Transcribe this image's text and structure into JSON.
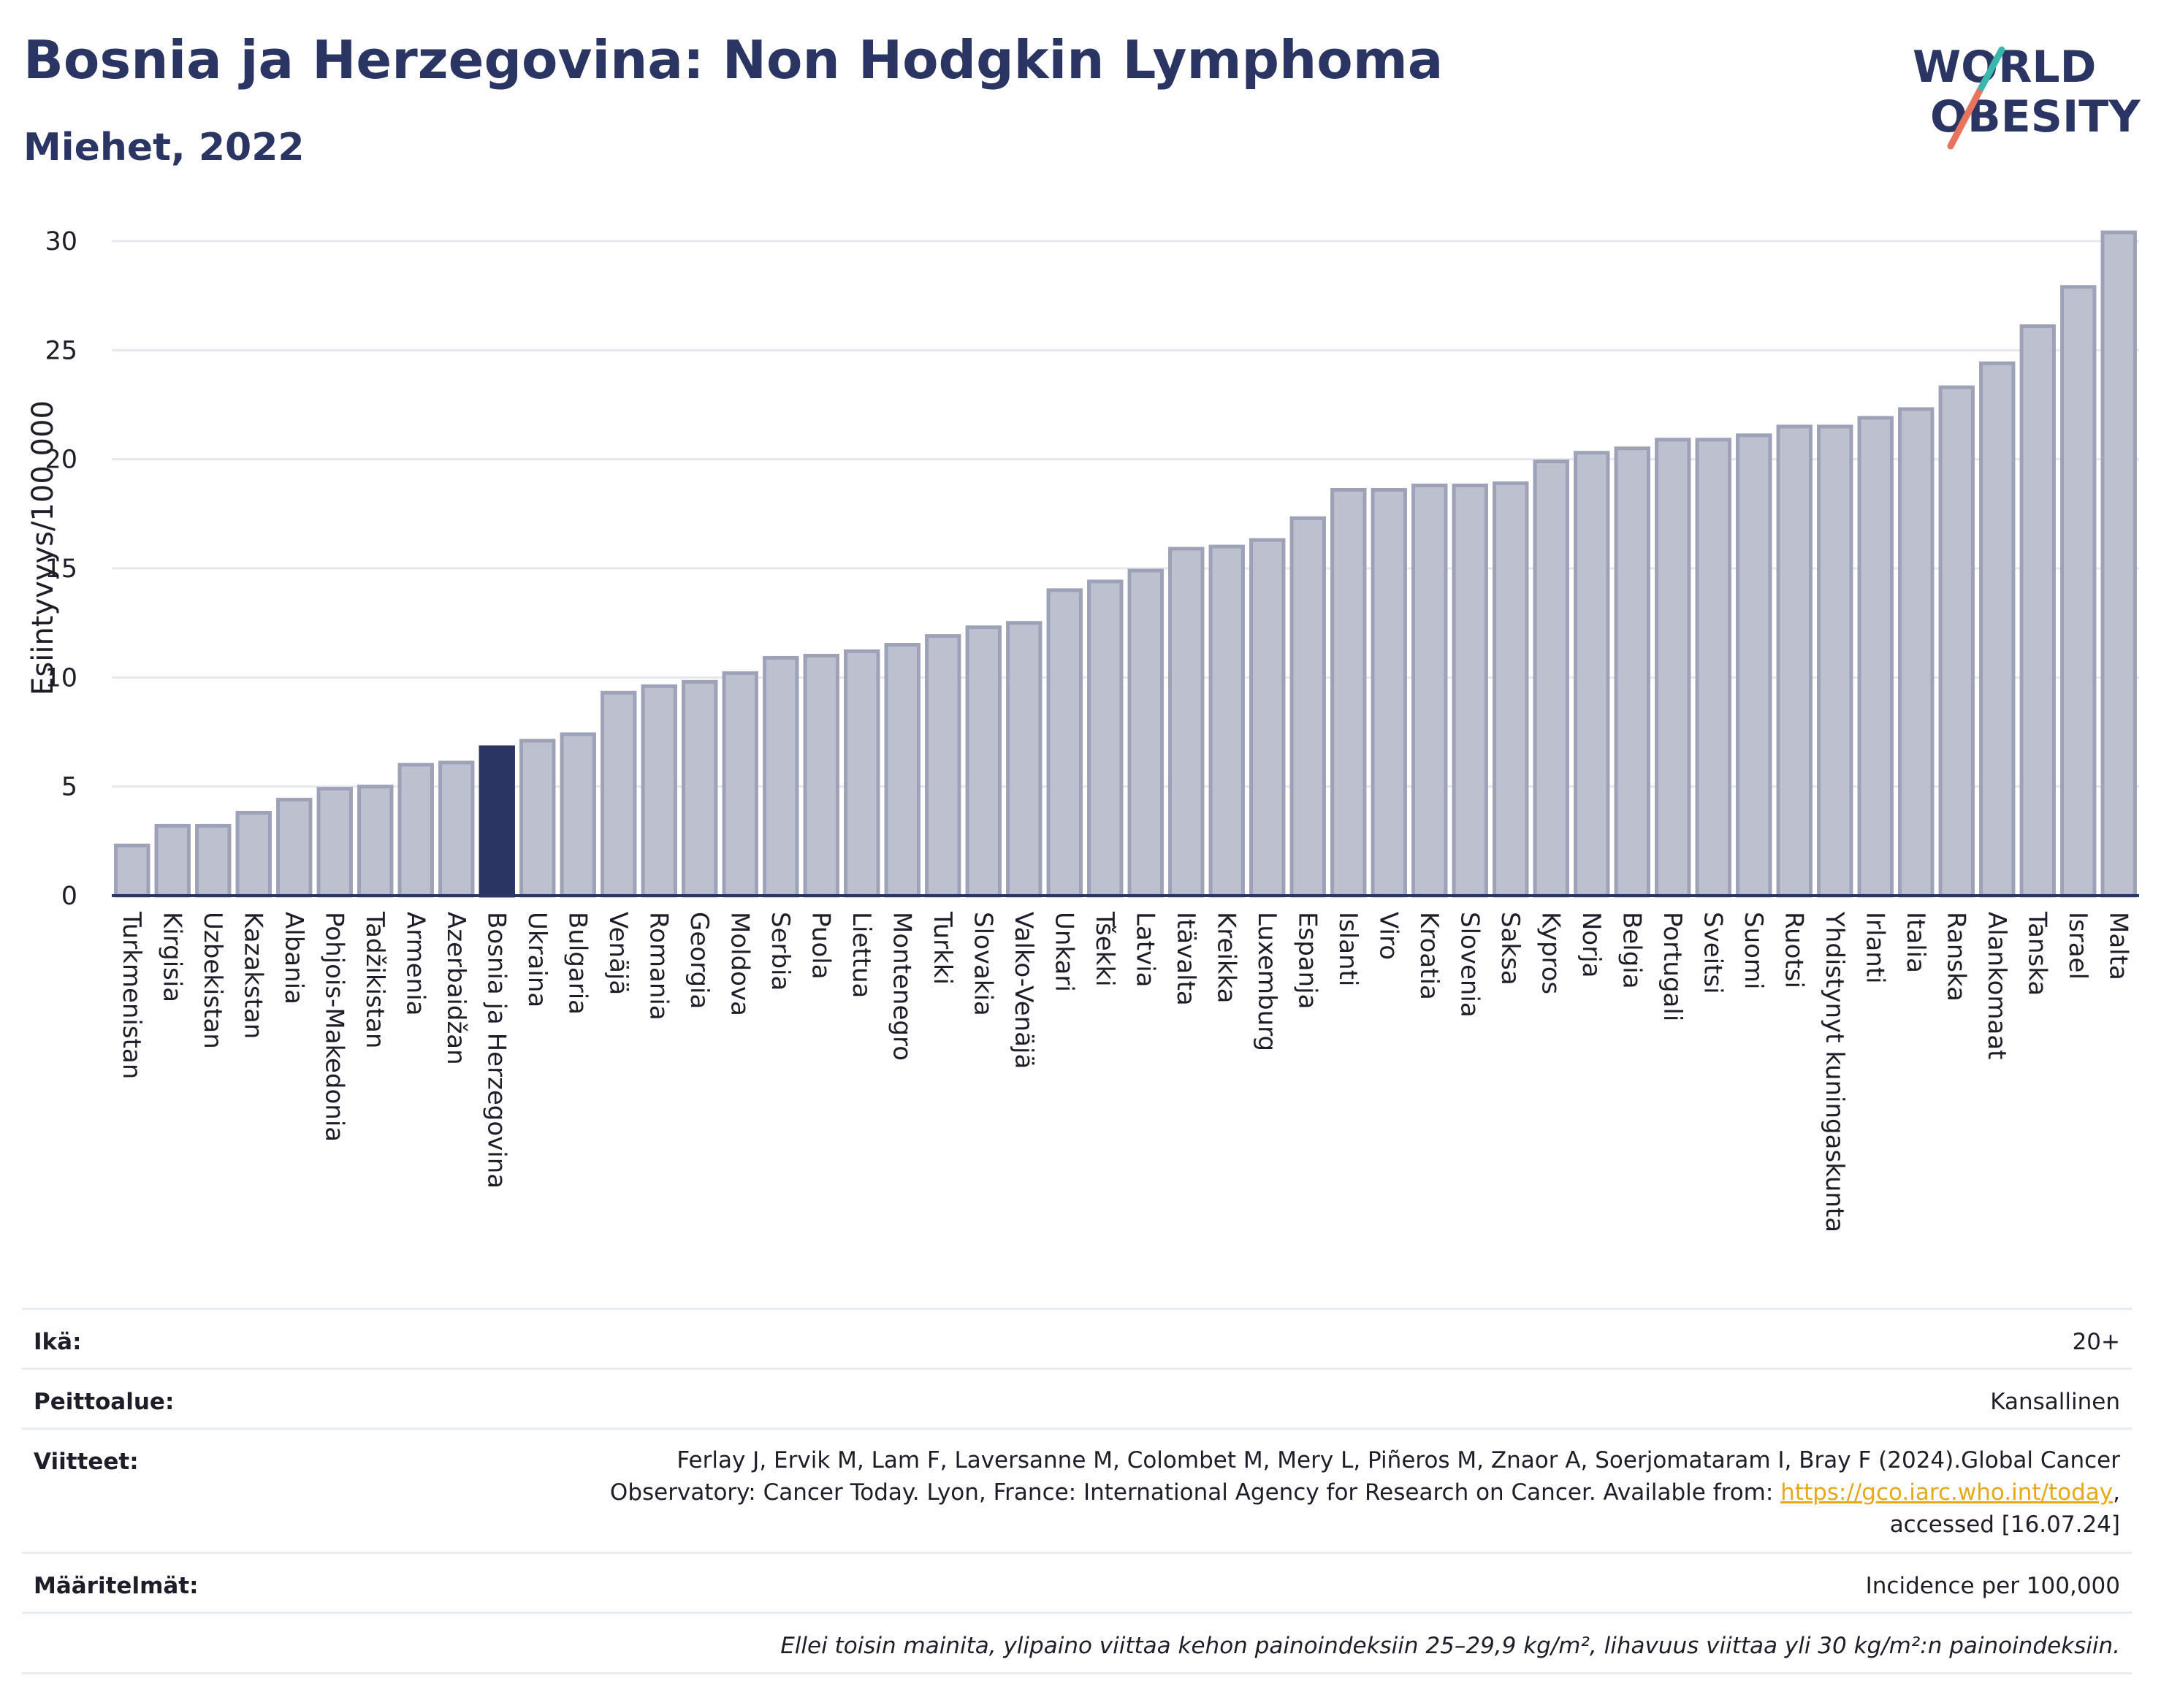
{
  "header": {
    "title": "Bosnia ja Herzegovina: Non Hodgkin Lymphoma",
    "subtitle": "Miehet, 2022",
    "logo_line1": "WORLD",
    "logo_line2": "OBESITY"
  },
  "chart_data": {
    "type": "bar",
    "ylabel": "Esiintyvyys/100 000",
    "ylim": [
      0,
      30
    ],
    "yticks": [
      0,
      5,
      10,
      15,
      20,
      25,
      30
    ],
    "grid": true,
    "highlight": "Bosnia ja Herzegovina",
    "colors": {
      "bar": "#bcc0cf",
      "bar_edge": "#9da2b8",
      "highlight": "#2b3563",
      "axis": "#2b3563",
      "grid": "#e6e8ef"
    },
    "categories": [
      "Turkmenistan",
      "Kirgisia",
      "Uzbekistan",
      "Kazakstan",
      "Albania",
      "Pohjois-Makedonia",
      "Tadžikistan",
      "Armenia",
      "Azerbaidžan",
      "Bosnia ja Herzegovina",
      "Ukraina",
      "Bulgaria",
      "Venäjä",
      "Romania",
      "Georgia",
      "Moldova",
      "Serbia",
      "Puola",
      "Liettua",
      "Montenegro",
      "Turkki",
      "Slovakia",
      "Valko-Venäjä",
      "Unkari",
      "Tšekki",
      "Latvia",
      "Itävalta",
      "Kreikka",
      "Luxemburg",
      "Espanja",
      "Islanti",
      "Viro",
      "Kroatia",
      "Slovenia",
      "Saksa",
      "Kypros",
      "Norja",
      "Belgia",
      "Portugali",
      "Sveitsi",
      "Suomi",
      "Ruotsi",
      "Yhdistynyt kuningaskunta",
      "Irlanti",
      "Italia",
      "Ranska",
      "Alankomaat",
      "Tanska",
      "Israel",
      "Malta"
    ],
    "values": [
      2.3,
      3.2,
      3.2,
      3.8,
      4.4,
      4.9,
      5.0,
      6.0,
      6.1,
      6.8,
      7.1,
      7.4,
      9.3,
      9.6,
      9.8,
      10.2,
      10.9,
      11.0,
      11.2,
      11.5,
      11.9,
      12.3,
      12.5,
      14.0,
      14.4,
      14.9,
      15.9,
      16.0,
      16.3,
      17.3,
      18.6,
      18.6,
      18.8,
      18.8,
      18.9,
      19.9,
      20.3,
      20.5,
      20.9,
      20.9,
      21.1,
      21.5,
      21.5,
      21.9,
      22.3,
      23.3,
      24.4,
      26.1,
      27.9,
      30.4
    ]
  },
  "info": {
    "age_label": "Ikä:",
    "age_value": "20+",
    "coverage_label": "Peittoalue:",
    "coverage_value": "Kansallinen",
    "refs_label": "Viitteet:",
    "refs_line1": "Ferlay J, Ervik M, Lam F, Laversanne M, Colombet M, Mery L, Piñeros M, Znaor A, Soerjomataram I, Bray F (2024).Global Cancer",
    "refs_line2": "Observatory: Cancer Today. Lyon, France: International Agency for Research on Cancer. Available from:",
    "refs_link": "https://gco.iarc.who.int/today",
    "refs_line3": "accessed [16.07.24]",
    "defs_label": "Määritelmät:",
    "defs_value": "Incidence per 100,000",
    "note": "Ellei toisin mainita, ylipaino viittaa kehon painoindeksiin 25–29,9 kg/m², lihavuus viittaa yli 30 kg/m²:n painoindeksiin."
  }
}
